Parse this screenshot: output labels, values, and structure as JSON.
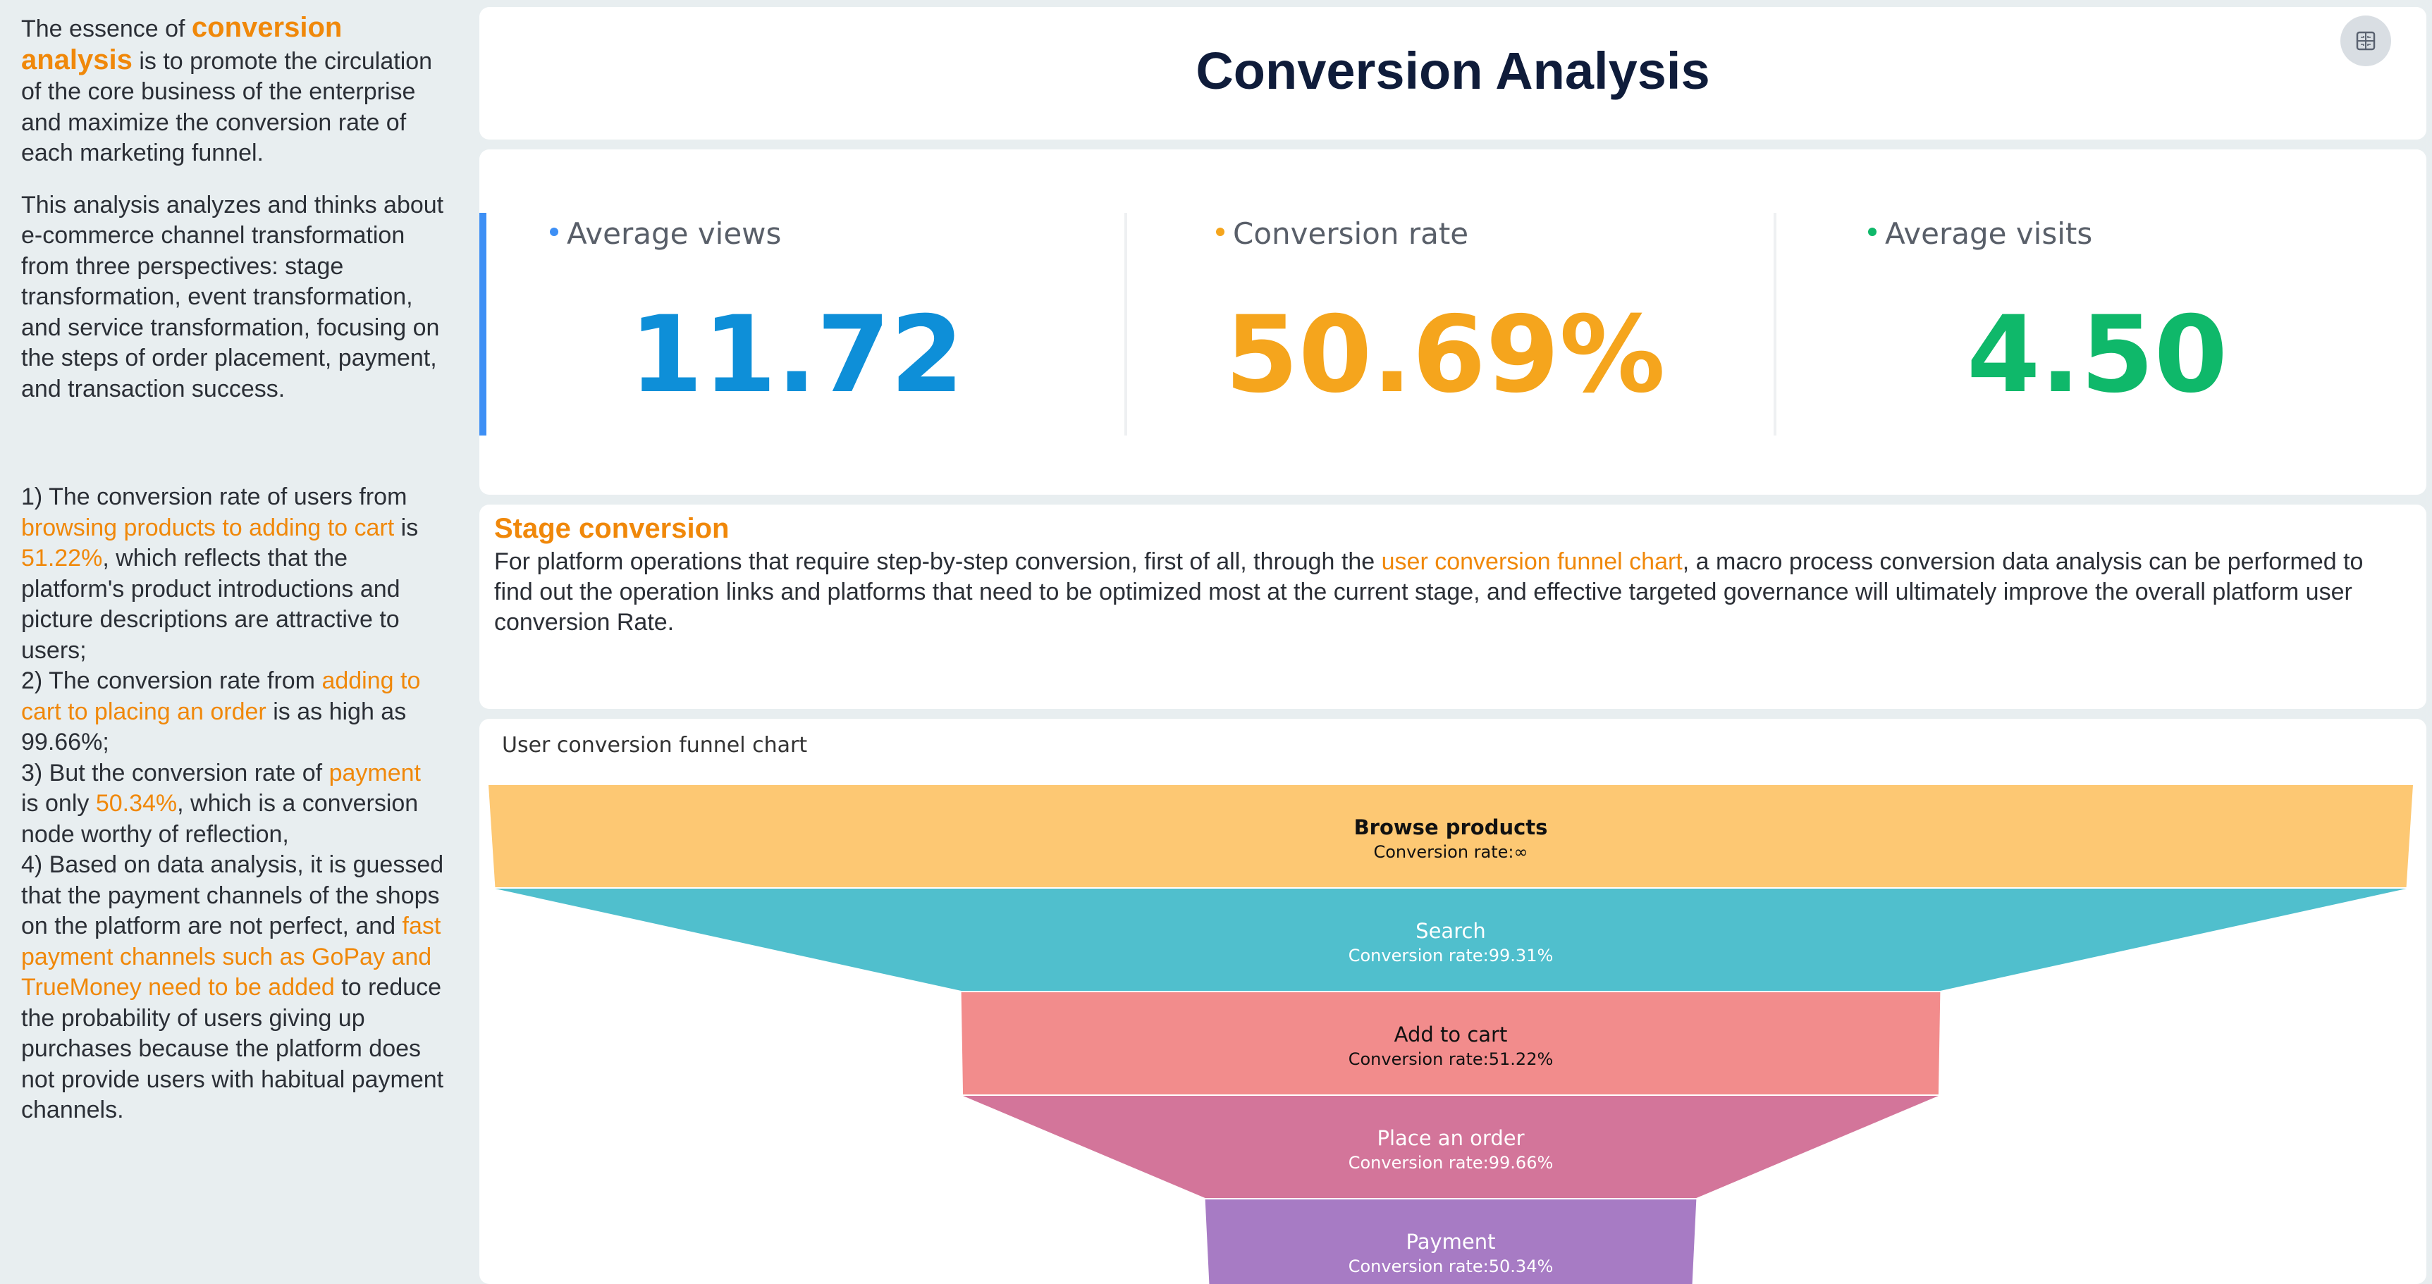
{
  "sidebar": {
    "p1_a": "The essence of ",
    "p1_hl": "conversion analysis",
    "p1_b": " is to promote the circulation of the core business of the enterprise and maximize the conversion rate of each marketing funnel.",
    "p2": "This analysis analyzes and thinks about e-commerce channel transformation from three perspectives: stage transformation, event transformation, and service transformation, focusing on the steps of order placement, payment, and transaction success.",
    "f1_a": "1) The conversion rate of users from ",
    "f1_hl1": "browsing products to adding to cart",
    "f1_b": " is ",
    "f1_hl2": "51.22%",
    "f1_c": ", which reflects that the platform's product introductions and picture descriptions are attractive to users;",
    "f2_a": "2) The conversion rate from ",
    "f2_hl": "adding to cart to placing an order",
    "f2_b": " is as high as 99.66%;",
    "f3_a": "3) But the conversion rate of ",
    "f3_hl1": "payment",
    "f3_b": " is only ",
    "f3_hl2": "50.34%",
    "f3_c": ", which is a conversion node worthy of reflection,",
    "f4_a": "4) Based on data analysis, it is guessed that the payment channels of the shops on the platform are not perfect, and ",
    "f4_hl": "fast payment channels such as GoPay and TrueMoney need to be added",
    "f4_b": " to reduce the probability of users giving up purchases because the platform does not provide users with habitual payment channels."
  },
  "header": {
    "title": "Conversion Analysis",
    "expand_icon": "expand-icon"
  },
  "kpis": [
    {
      "label": "Average views",
      "value": "11.72",
      "color": "#0e8fd8",
      "dot": "#3d8ff5"
    },
    {
      "label": "Conversion rate",
      "value": "50.69%",
      "color": "#f5a51d",
      "dot": "#f5a51d"
    },
    {
      "label": "Average visits",
      "value": "4.50",
      "color": "#0fb86a",
      "dot": "#0fb86a"
    }
  ],
  "stage": {
    "title": "Stage conversion",
    "text_a": "For platform operations that require step-by-step conversion, first of all, through the ",
    "text_hl": "user conversion funnel chart",
    "text_b": ", a macro process conversion data analysis can be performed to find out the operation links and platforms that need to be optimized most at the current stage, and effective targeted governance will ultimately improve the overall platform user conversion Rate."
  },
  "funnel": {
    "title": "User conversion funnel chart",
    "rate_prefix": "Conversion rate:"
  },
  "chart_data": {
    "type": "funnel",
    "title": "User conversion funnel chart",
    "stages": [
      {
        "name": "Browse products",
        "conversion_rate": "∞",
        "relative_width": 1.0,
        "color": "#fdc873",
        "text_color": "#111111"
      },
      {
        "name": "Search",
        "conversion_rate": "99.31%",
        "relative_width": 0.9931,
        "color": "#50bfcd",
        "text_color": "#ffffff"
      },
      {
        "name": "Add to cart",
        "conversion_rate": "51.22%",
        "relative_width": 0.5087,
        "color": "#f28c8c",
        "text_color": "#111111"
      },
      {
        "name": "Place an order",
        "conversion_rate": "99.66%",
        "relative_width": 0.5069,
        "color": "#d3759a",
        "text_color": "#ffffff"
      },
      {
        "name": "Payment",
        "conversion_rate": "50.34%",
        "relative_width": 0.2552,
        "color": "#a77bc4",
        "text_color": "#ffffff"
      }
    ]
  }
}
